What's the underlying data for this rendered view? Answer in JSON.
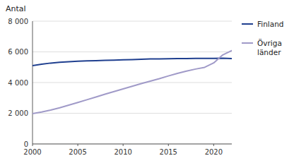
{
  "chart_data": {
    "type": "line",
    "y_label": "Antal",
    "x": [
      2000,
      2001,
      2002,
      2003,
      2004,
      2005,
      2006,
      2007,
      2008,
      2009,
      2010,
      2011,
      2012,
      2013,
      2014,
      2015,
      2016,
      2017,
      2018,
      2019,
      2020,
      2021,
      2022
    ],
    "series": [
      {
        "name": "Finland",
        "color": "#1f3f8f",
        "values": [
          5100,
          5200,
          5270,
          5320,
          5360,
          5390,
          5410,
          5430,
          5450,
          5465,
          5480,
          5500,
          5520,
          5535,
          5545,
          5555,
          5560,
          5565,
          5570,
          5575,
          5580,
          5590,
          5560
        ]
      },
      {
        "name": "Övriga\nländer",
        "color": "#a09ac8",
        "values": [
          1980,
          2080,
          2210,
          2360,
          2530,
          2700,
          2880,
          3060,
          3240,
          3410,
          3590,
          3760,
          3930,
          4090,
          4250,
          4430,
          4600,
          4750,
          4880,
          4990,
          5280,
          5800,
          6080
        ]
      }
    ],
    "xlim": [
      2000,
      2022
    ],
    "xticks": [
      2000,
      2005,
      2010,
      2015,
      2020
    ],
    "ylim": [
      0,
      8000
    ],
    "yticks": [
      0,
      {
        "value": 2000,
        "label": "2 000"
      },
      {
        "value": 4000,
        "label": "4 000"
      },
      {
        "value": 6000,
        "label": "6 000"
      },
      {
        "value": 8000,
        "label": "8 000"
      }
    ],
    "grid": true,
    "legend": "right"
  }
}
